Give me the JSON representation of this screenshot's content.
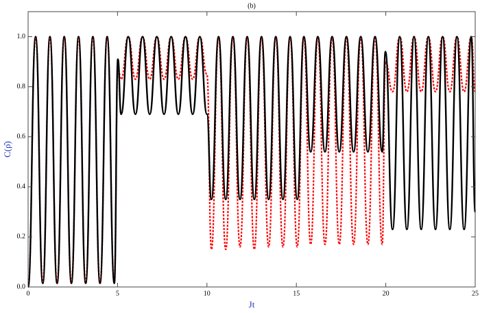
{
  "chart_data": {
    "type": "line",
    "title": "(b)",
    "x_label": "Jt",
    "y_label": "C(ρ̂)",
    "x": [
      0,
      0.42,
      0.82,
      1.22,
      1.62,
      2.02,
      2.42,
      2.82,
      3.22,
      3.62,
      4.02,
      4.42,
      4.82,
      5.02,
      5.2,
      5.6,
      6.0,
      6.4,
      6.8,
      7.2,
      7.6,
      8.0,
      8.4,
      8.8,
      9.2,
      9.6,
      10.0,
      10.25,
      10.65,
      11.05,
      11.45,
      11.85,
      12.25,
      12.65,
      13.05,
      13.45,
      13.85,
      14.25,
      14.65,
      15.05,
      15.42,
      15.8,
      16.2,
      16.6,
      17.0,
      17.4,
      17.8,
      18.2,
      18.6,
      19.0,
      19.4,
      19.8,
      19.98,
      20.38,
      20.78,
      21.18,
      21.58,
      21.98,
      22.38,
      22.78,
      23.18,
      23.58,
      23.98,
      24.38,
      24.78,
      25
    ],
    "series": [
      {
        "color": "#ff0000",
        "dashed": true,
        "values": [
          0,
          1,
          0.015,
          1,
          0.015,
          1,
          0.015,
          1,
          0.015,
          1,
          0.015,
          1,
          0.015,
          0.87,
          0.83,
          1,
          0.83,
          1,
          0.83,
          1,
          0.83,
          1,
          0.83,
          1,
          0.83,
          1,
          0.85,
          0.15,
          1,
          0.15,
          1,
          0.16,
          1,
          0.15,
          1,
          0.16,
          1,
          0.16,
          1,
          0.16,
          1,
          0.17,
          1,
          0.17,
          1,
          0.17,
          1,
          0.17,
          1,
          0.17,
          1,
          0.17,
          0.9,
          0.78,
          1,
          0.78,
          1,
          0.78,
          1,
          0.78,
          1,
          0.78,
          1,
          0.78,
          1,
          0.78
        ]
      },
      {
        "color": "#000000",
        "dashed": false,
        "values": [
          0,
          1,
          0.015,
          1,
          0.015,
          1,
          0.015,
          1,
          0.015,
          1,
          0.015,
          1,
          0.015,
          0.91,
          0.69,
          1,
          0.69,
          1,
          0.69,
          1,
          0.69,
          1,
          0.69,
          1,
          0.69,
          1,
          0.69,
          0.35,
          1,
          0.35,
          1,
          0.35,
          1,
          0.35,
          1,
          0.35,
          1,
          0.35,
          1,
          0.35,
          1,
          0.54,
          1,
          0.54,
          1,
          0.54,
          1,
          0.54,
          1,
          0.54,
          1,
          0.54,
          0.94,
          0.23,
          1,
          0.23,
          1,
          0.23,
          1,
          0.23,
          1,
          0.23,
          1,
          0.23,
          1,
          0.3
        ]
      }
    ],
    "xlim": [
      0,
      25
    ],
    "xticks": [
      0,
      5,
      10,
      15,
      20,
      25
    ],
    "ylim": [
      0,
      1.1
    ],
    "yticks": [
      {
        "value": 0,
        "label": "0.0"
      },
      0.2,
      0.4,
      0.6,
      0.8,
      {
        "value": 1,
        "label": "1.0"
      }
    ]
  }
}
